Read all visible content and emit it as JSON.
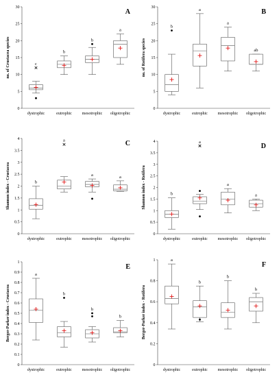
{
  "chart_data": [
    {
      "type": "box",
      "panel": "A",
      "ylabel": "no. of Crustacea species",
      "ylim": [
        0,
        30
      ],
      "yticks": [
        0,
        5,
        10,
        15,
        20,
        25,
        30
      ],
      "categories": [
        "dystrophic",
        "eutrophic",
        "mesotrophic",
        "oligotrophic"
      ],
      "boxes": [
        {
          "min": 4.5,
          "q1": 5.5,
          "median": 6,
          "q3": 7,
          "max": 8,
          "mean": 6.2,
          "outliers": [
            3
          ],
          "extremes": [
            12
          ],
          "sig": "c"
        },
        {
          "min": 10,
          "q1": 12,
          "median": 13,
          "q3": 14,
          "max": 15.5,
          "mean": 12.7,
          "outliers": [],
          "extremes": [],
          "sig": "b"
        },
        {
          "min": 10,
          "q1": 13.5,
          "median": 14.5,
          "q3": 15.5,
          "max": 18,
          "mean": 14.5,
          "outliers": [
            19
          ],
          "extremes": [],
          "sig": "b"
        },
        {
          "min": 13,
          "q1": 15,
          "median": 19,
          "q3": 20,
          "max": 22,
          "mean": 17.8,
          "outliers": [],
          "extremes": [],
          "sig": "a"
        }
      ]
    },
    {
      "type": "box",
      "panel": "B",
      "ylabel": "no. of Rotifera species",
      "ylim": [
        0,
        30
      ],
      "yticks": [
        0,
        5,
        10,
        15,
        20,
        25,
        30
      ],
      "categories": [
        "dystrophic",
        "eutrophic",
        "mesotrophic",
        "oligotrophic"
      ],
      "boxes": [
        {
          "min": 4,
          "q1": 5,
          "median": 7,
          "q3": 10,
          "max": 16,
          "mean": 8.5,
          "outliers": [
            23
          ],
          "extremes": [],
          "sig": "b"
        },
        {
          "min": 6,
          "q1": 12.5,
          "median": 17,
          "q3": 19,
          "max": 28,
          "mean": 15.6,
          "outliers": [],
          "extremes": [],
          "sig": "a"
        },
        {
          "min": 11,
          "q1": 14,
          "median": 18.5,
          "q3": 21,
          "max": 24,
          "mean": 17.8,
          "outliers": [],
          "extremes": [],
          "sig": "a"
        },
        {
          "min": 11,
          "q1": 13,
          "median": 13,
          "q3": 16,
          "max": 16,
          "mean": 13.8,
          "outliers": [],
          "extremes": [],
          "sig": "ab"
        }
      ]
    },
    {
      "type": "box",
      "panel": "C",
      "ylabel": "Shannon index - Crustacea",
      "ylim": [
        0,
        4
      ],
      "yticks": [
        0,
        0.5,
        1,
        1.5,
        2,
        2.5,
        3,
        3.5,
        4
      ],
      "categories": [
        "dystrophic",
        "eutrophic",
        "mesotrophic",
        "oligotrophic"
      ],
      "boxes": [
        {
          "min": 0.63,
          "q1": 1.03,
          "median": 1.2,
          "q3": 1.47,
          "max": 2.0,
          "mean": 1.22,
          "outliers": [],
          "extremes": [],
          "sig": "b"
        },
        {
          "min": 1.75,
          "q1": 1.88,
          "median": 2.0,
          "q3": 2.25,
          "max": 2.4,
          "mean": 2.17,
          "outliers": [],
          "extremes": [
            3.75
          ],
          "sig": "a"
        },
        {
          "min": 1.75,
          "q1": 1.97,
          "median": 2.07,
          "q3": 2.2,
          "max": 2.3,
          "mean": 2.03,
          "outliers": [
            1.47
          ],
          "extremes": [],
          "sig": "a"
        },
        {
          "min": 1.78,
          "q1": 1.8,
          "median": 1.87,
          "q3": 2.05,
          "max": 2.22,
          "mean": 1.93,
          "outliers": [],
          "extremes": [],
          "sig": "a"
        }
      ]
    },
    {
      "type": "box",
      "panel": "D",
      "ylabel": "Shannon index - Rotifera",
      "ylim": [
        0,
        4
      ],
      "yticks": [
        0,
        0.5,
        1,
        1.5,
        2,
        2.5,
        3,
        3.5,
        4
      ],
      "categories": [
        "dystrophic",
        "eutrophic",
        "mesotrophic",
        "oligotrophic"
      ],
      "boxes": [
        {
          "min": 0.2,
          "q1": 0.7,
          "median": 0.85,
          "q3": 1.0,
          "max": 1.55,
          "mean": 0.85,
          "outliers": [],
          "extremes": [],
          "sig": "b"
        },
        {
          "min": 1.05,
          "q1": 1.3,
          "median": 1.4,
          "q3": 1.6,
          "max": 1.7,
          "mean": 1.55,
          "outliers": [
            0.75,
            1.85
          ],
          "extremes": [
            3.8
          ],
          "sig": "a"
        },
        {
          "min": 0.9,
          "q1": 1.25,
          "median": 1.5,
          "q3": 1.8,
          "max": 1.95,
          "mean": 1.45,
          "outliers": [],
          "extremes": [],
          "sig": "a"
        },
        {
          "min": 1.0,
          "q1": 1.15,
          "median": 1.3,
          "q3": 1.45,
          "max": 1.5,
          "mean": 1.25,
          "outliers": [],
          "extremes": [],
          "sig": "a"
        }
      ]
    },
    {
      "type": "box",
      "panel": "E",
      "ylabel": "Berger-Parker index - Crustacea",
      "ylim": [
        0,
        1
      ],
      "yticks": [
        0,
        0.1,
        0.2,
        0.3,
        0.4,
        0.5,
        0.6,
        0.7,
        0.8,
        0.9,
        1
      ],
      "categories": [
        "dystrophic",
        "eutrophic",
        "mesotrophic",
        "oligotrophic"
      ],
      "boxes": [
        {
          "min": 0.24,
          "q1": 0.41,
          "median": 0.53,
          "q3": 0.64,
          "max": 0.84,
          "mean": 0.54,
          "outliers": [],
          "extremes": [],
          "sig": "a"
        },
        {
          "min": 0.17,
          "q1": 0.27,
          "median": 0.31,
          "q3": 0.37,
          "max": 0.42,
          "mean": 0.33,
          "outliers": [
            0.65
          ],
          "extremes": [],
          "sig": "b"
        },
        {
          "min": 0.22,
          "q1": 0.26,
          "median": 0.3,
          "q3": 0.34,
          "max": 0.37,
          "mean": 0.31,
          "outliers": [
            0.47,
            0.5
          ],
          "extremes": [],
          "sig": "b"
        },
        {
          "min": 0.27,
          "q1": 0.31,
          "median": 0.32,
          "q3": 0.36,
          "max": 0.43,
          "mean": 0.33,
          "outliers": [],
          "extremes": [],
          "sig": "b"
        }
      ]
    },
    {
      "type": "box",
      "panel": "F",
      "ylabel": "Berger-Parker index - Rotifera",
      "ylim": [
        0,
        1
      ],
      "yticks": [
        0,
        0.2,
        0.4,
        0.6,
        0.8,
        1
      ],
      "categories": [
        "dystrophic",
        "eutrophic",
        "mesotrophic",
        "oligotrophic"
      ],
      "boxes": [
        {
          "min": 0.34,
          "q1": 0.58,
          "median": 0.63,
          "q3": 0.75,
          "max": 0.96,
          "mean": 0.65,
          "outliers": [],
          "extremes": [],
          "sig": "a"
        },
        {
          "min": 0.41,
          "q1": 0.45,
          "median": 0.55,
          "q3": 0.61,
          "max": 0.75,
          "mean": 0.56,
          "outliers": [
            0.43
          ],
          "extremes": [],
          "sig": "b"
        },
        {
          "min": 0.34,
          "q1": 0.45,
          "median": 0.5,
          "q3": 0.59,
          "max": 0.8,
          "mean": 0.52,
          "outliers": [],
          "extremes": [],
          "sig": "b"
        },
        {
          "min": 0.4,
          "q1": 0.51,
          "median": 0.6,
          "q3": 0.64,
          "max": 0.68,
          "mean": 0.56,
          "outliers": [],
          "extremes": [],
          "sig": "b"
        }
      ]
    }
  ]
}
